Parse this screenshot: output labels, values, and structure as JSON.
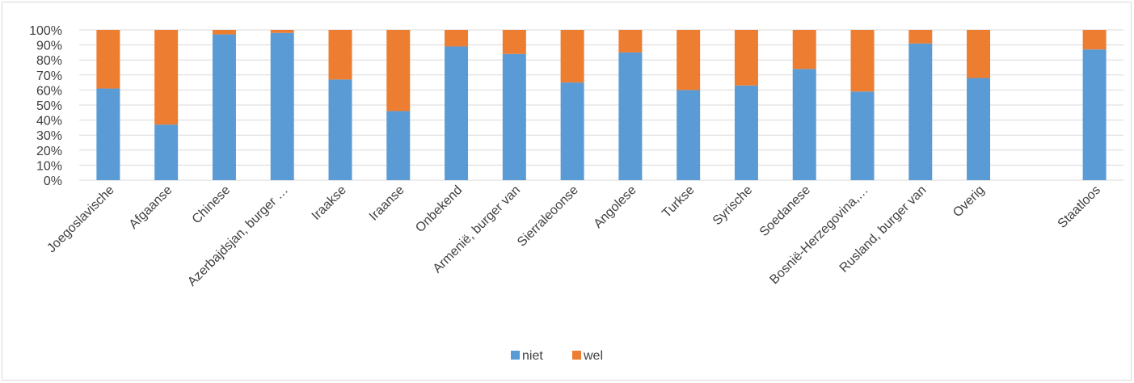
{
  "chart_data": {
    "type": "bar",
    "stacked": true,
    "categories": [
      "Joegoslavische",
      "Afgaanse",
      "Chinese",
      "Azerbajdsjan, burger …",
      "Iraakse",
      "Iraanse",
      "Onbekend",
      "Armenië, burger van",
      "Sierraleoonse",
      "Angolese",
      "Turkse",
      "Syrische",
      "Soedanese",
      "Bosnië-Herzegovina,…",
      "Rusland, burger van",
      "Overig",
      "",
      "Staatloos"
    ],
    "series": [
      {
        "name": "niet",
        "color": "#5b9bd5",
        "values": [
          0.61,
          0.37,
          0.97,
          0.98,
          0.67,
          0.46,
          0.89,
          0.84,
          0.65,
          0.85,
          0.6,
          0.63,
          0.74,
          0.59,
          0.91,
          0.68,
          null,
          0.87
        ]
      },
      {
        "name": "wel",
        "color": "#ed7d31",
        "values": [
          0.39,
          0.63,
          0.03,
          0.02,
          0.33,
          0.54,
          0.11,
          0.16,
          0.35,
          0.15,
          0.4,
          0.37,
          0.26,
          0.41,
          0.09,
          0.32,
          null,
          0.13
        ]
      }
    ],
    "yticks": [
      "0%",
      "10%",
      "20%",
      "30%",
      "40%",
      "50%",
      "60%",
      "70%",
      "80%",
      "90%",
      "100%"
    ],
    "ylim": [
      0,
      1
    ],
    "grid": true,
    "legend_position": "bottom",
    "title": "",
    "xlabel": "",
    "ylabel": ""
  }
}
